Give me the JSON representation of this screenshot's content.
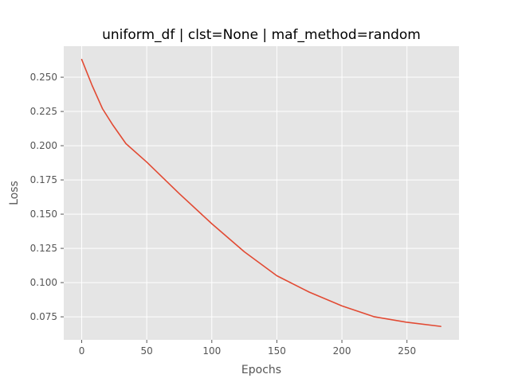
{
  "chart_data": {
    "type": "line",
    "title": "uniform_df | clst=None | maf_method=random",
    "xlabel": "Epochs",
    "ylabel": "Loss",
    "xlim": [
      -13.8,
      290.0
    ],
    "ylim": [
      0.0582,
      0.2727
    ],
    "xticks": [
      0,
      50,
      100,
      150,
      200,
      250
    ],
    "xtick_labels": [
      "0",
      "50",
      "100",
      "150",
      "200",
      "250"
    ],
    "yticks": [
      0.075,
      0.1,
      0.125,
      0.15,
      0.175,
      0.2,
      0.225,
      0.25
    ],
    "ytick_labels": [
      "0.075",
      "0.100",
      "0.125",
      "0.150",
      "0.175",
      "0.200",
      "0.225",
      "0.250"
    ],
    "grid": true,
    "style": "ggplot",
    "colors": {
      "plot_background": "#e5e5e5",
      "grid": "#ffffff",
      "tick": "#555555",
      "line": "#e24a33"
    },
    "series": [
      {
        "points": [
          [
            0,
            0.263
          ],
          [
            8,
            0.244
          ],
          [
            16,
            0.227
          ],
          [
            24,
            0.215
          ],
          [
            34,
            0.2015
          ],
          [
            50,
            0.188
          ],
          [
            75,
            0.165
          ],
          [
            100,
            0.143
          ],
          [
            125,
            0.1225
          ],
          [
            150,
            0.105
          ],
          [
            175,
            0.093
          ],
          [
            200,
            0.083
          ],
          [
            225,
            0.075
          ],
          [
            250,
            0.071
          ],
          [
            276,
            0.068
          ]
        ]
      }
    ]
  }
}
